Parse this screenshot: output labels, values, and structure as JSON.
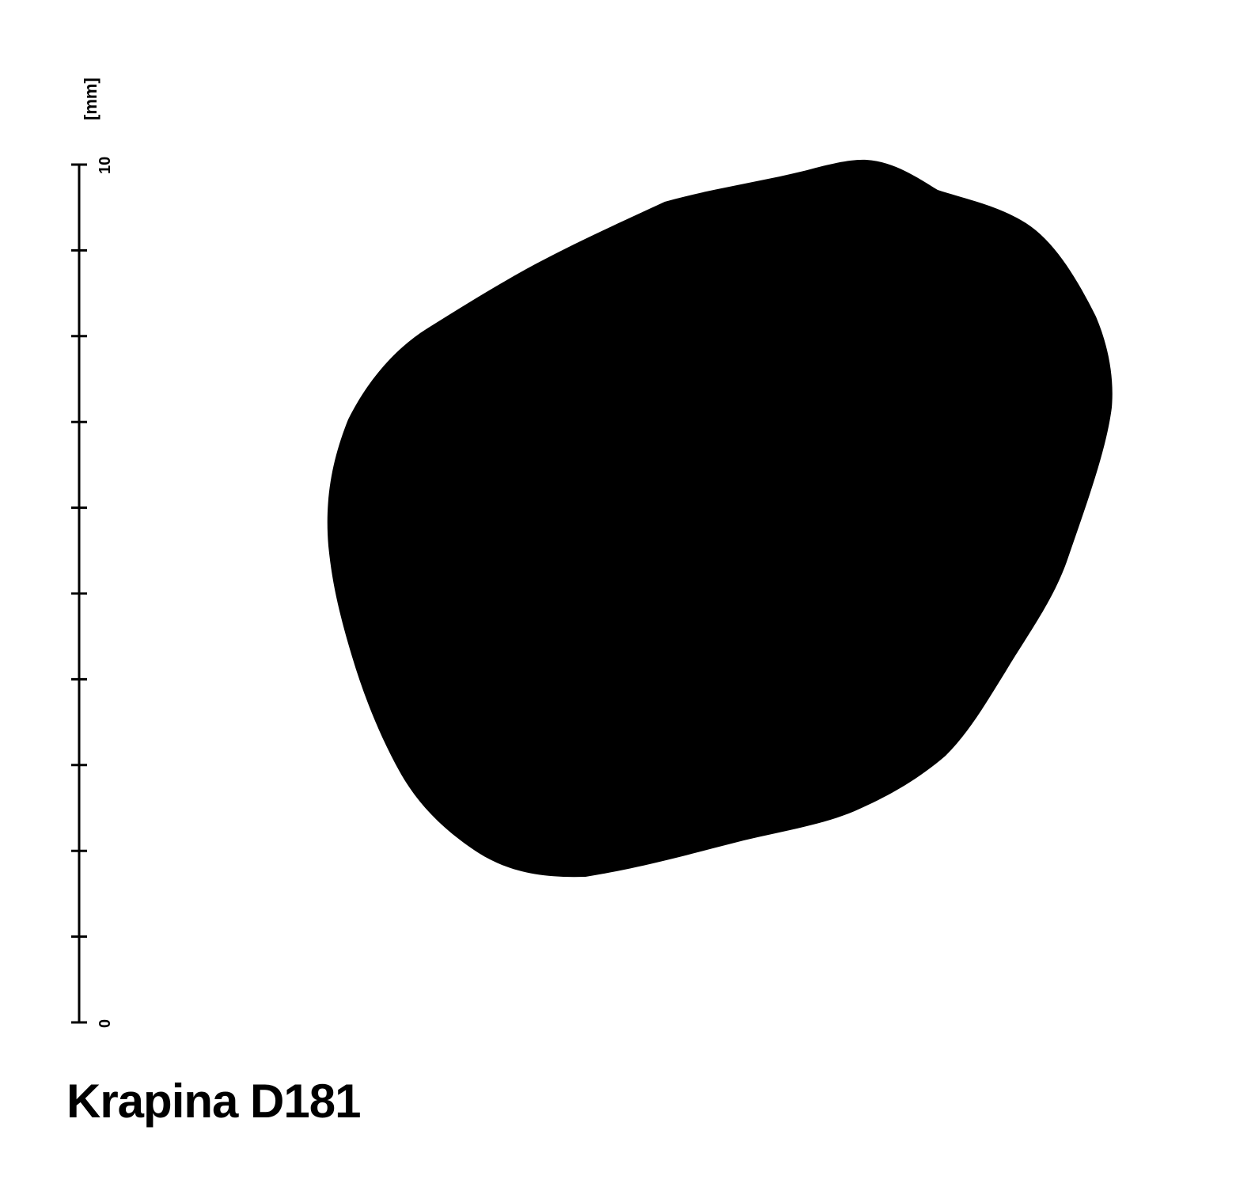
{
  "scale": {
    "unit_label": "[mm]",
    "min_label": "0",
    "max_label": "10",
    "min_value": 0,
    "max_value": 10,
    "tick_values": [
      0,
      1,
      2,
      3,
      4,
      5,
      6,
      7,
      8,
      9,
      10
    ],
    "color": "#000000"
  },
  "specimen": {
    "label": "Krapina D181",
    "outline_color": "#000000"
  }
}
